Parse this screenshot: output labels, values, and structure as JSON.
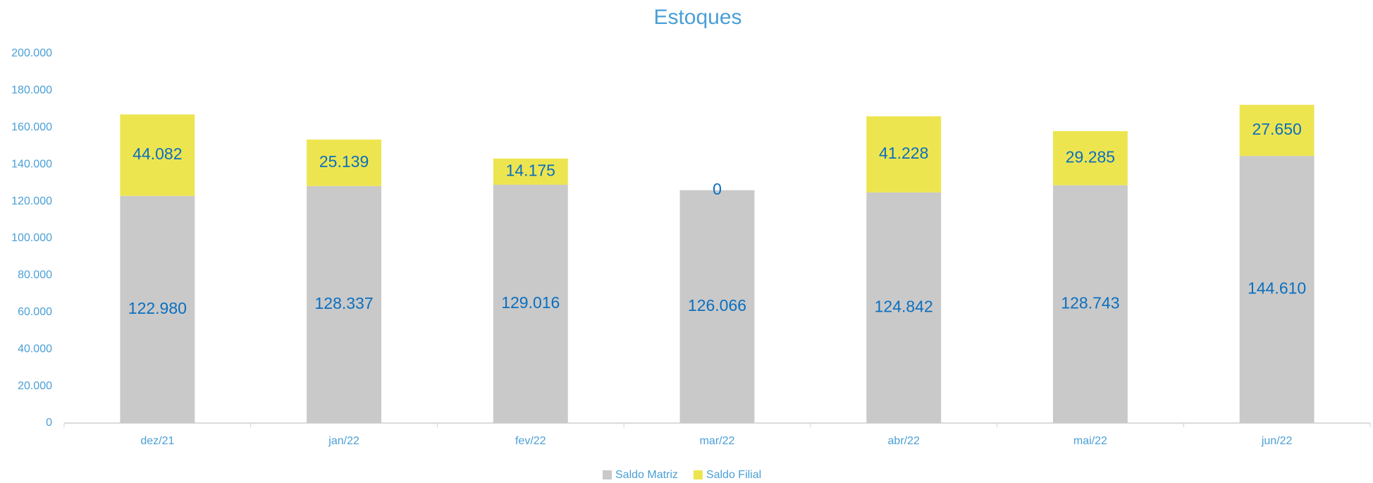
{
  "chart_data": {
    "type": "stacked_bar",
    "title": "Estoques",
    "categories": [
      "dez/21",
      "jan/22",
      "fev/22",
      "mar/22",
      "abr/22",
      "mai/22",
      "jun/22"
    ],
    "series": [
      {
        "name": "Saldo Matriz",
        "color": "#c9c9c9",
        "values": [
          122980,
          128337,
          129016,
          126066,
          124842,
          128743,
          144610
        ],
        "value_labels": [
          "122.980",
          "128.337",
          "129.016",
          "126.066",
          "124.842",
          "128.743",
          "144.610"
        ]
      },
      {
        "name": "Saldo Filial",
        "color": "#ede550",
        "values": [
          44082,
          25139,
          14175,
          0,
          41228,
          29285,
          27650
        ],
        "value_labels": [
          "44.082",
          "25.139",
          "14.175",
          "0",
          "41.228",
          "29.285",
          "27.650"
        ]
      }
    ],
    "ylim": [
      0,
      200000
    ],
    "yticks": [
      0,
      {
        "value": 20000,
        "label": "20.000"
      },
      {
        "value": 40000,
        "label": "40.000"
      },
      {
        "value": 60000,
        "label": "60.000"
      },
      {
        "value": 80000,
        "label": "80.000"
      },
      {
        "value": 100000,
        "label": "100.000"
      },
      {
        "value": 120000,
        "label": "120.000"
      },
      {
        "value": 140000,
        "label": "140.000"
      },
      {
        "value": 160000,
        "label": "160.000"
      },
      {
        "value": 180000,
        "label": "180.000"
      },
      {
        "value": 200000,
        "label": "200.000"
      }
    ],
    "grid": false,
    "legend": "bottom"
  }
}
